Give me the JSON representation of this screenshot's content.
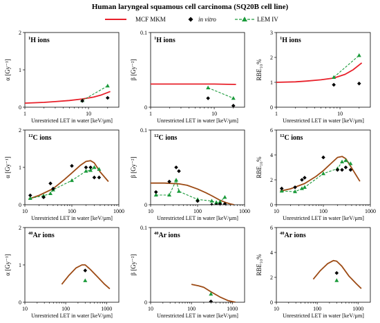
{
  "chart_data": {
    "type": "line",
    "title": "Human laryngeal squamous cell carcinoma (SQ20B cell line)",
    "legend": {
      "placement": "top",
      "entries": [
        {
          "label": "MCF MKM",
          "style": "solid line",
          "color": "#e8202a"
        },
        {
          "label": "in vitro",
          "style": "diamond markers",
          "color": "#000000"
        },
        {
          "label": "LEM IV",
          "style": "dashed line with triangles",
          "color": "#1a9a3a"
        }
      ]
    },
    "colors": {
      "mcf_h": "#e8202a",
      "mcf_ion": "#9c4a14",
      "invitro": "#000000",
      "lem": "#1a9a3a"
    },
    "panels": [
      {
        "ion_prefix": "1",
        "ion_label": "H ions",
        "ylabel": "α [Gy⁻¹]",
        "xlabel": "Unrestricted LET in water [keV/µm]",
        "xscale": "log",
        "xlim": [
          1,
          30
        ],
        "xticks": [
          1,
          10
        ],
        "ylim": [
          0,
          2
        ],
        "yticks": [
          0,
          1,
          2
        ],
        "mcf": {
          "x": [
            1,
            2,
            3,
            5,
            8,
            12,
            16,
            22
          ],
          "y": [
            0.11,
            0.13,
            0.15,
            0.18,
            0.22,
            0.27,
            0.33,
            0.42
          ]
        },
        "invitro": {
          "x": [
            8,
            20
          ],
          "y": [
            0.17,
            0.25
          ]
        },
        "lem": {
          "x": [
            8,
            20
          ],
          "y": [
            0.18,
            0.57
          ]
        }
      },
      {
        "ion_prefix": "1",
        "ion_label": "H ions",
        "ylabel": "β [Gy⁻²]",
        "xlabel": "Unrestricted LET in water [keV/µm]",
        "xscale": "log",
        "xlim": [
          1,
          30
        ],
        "xticks": [
          1,
          10
        ],
        "ylim": [
          0,
          0.1
        ],
        "yticks": [
          0,
          0.1
        ],
        "mcf": {
          "x": [
            1,
            3,
            10,
            22
          ],
          "y": [
            0.031,
            0.031,
            0.031,
            0.0305
          ]
        },
        "invitro": {
          "x": [
            8,
            20
          ],
          "y": [
            0.012,
            0.002
          ]
        },
        "lem": {
          "x": [
            8,
            20
          ],
          "y": [
            0.026,
            0.012
          ]
        }
      },
      {
        "ion_prefix": "1",
        "ion_label": "H ions",
        "ylabel": "RBE₁₀%",
        "xlabel": "Unrestricted LET in water [keV/µm]",
        "xscale": "log",
        "xlim": [
          1,
          30
        ],
        "xticks": [
          1,
          10
        ],
        "ylim": [
          0,
          3
        ],
        "yticks": [
          0,
          1,
          2,
          3
        ],
        "mcf": {
          "x": [
            1,
            2,
            3,
            5,
            8,
            12,
            16,
            22
          ],
          "y": [
            1.0,
            1.02,
            1.05,
            1.1,
            1.17,
            1.32,
            1.5,
            1.78
          ]
        },
        "invitro": {
          "x": [
            8,
            20
          ],
          "y": [
            0.9,
            0.95
          ]
        },
        "lem": {
          "x": [
            8,
            20
          ],
          "y": [
            1.2,
            2.08
          ]
        }
      },
      {
        "ion_prefix": "12",
        "ion_label": "C ions",
        "ylabel": "α [Gy⁻¹]",
        "xlabel": "Unrestricted LET in water [keV/µm]",
        "xscale": "log",
        "xlim": [
          10,
          1000
        ],
        "xticks": [
          10,
          100,
          1000
        ],
        "ylim": [
          0,
          2
        ],
        "yticks": [
          0,
          1,
          2
        ],
        "mcf": {
          "x": [
            12,
            20,
            40,
            70,
            100,
            150,
            200,
            250,
            300,
            400,
            600
          ],
          "y": [
            0.15,
            0.25,
            0.43,
            0.68,
            0.85,
            1.05,
            1.16,
            1.18,
            1.12,
            0.88,
            0.62
          ]
        },
        "invitro": {
          "x": [
            13,
            25,
            35,
            40,
            100,
            200,
            250,
            300,
            380
          ],
          "y": [
            0.25,
            0.2,
            0.57,
            0.43,
            1.04,
            1.0,
            1.0,
            0.73,
            0.73
          ]
        },
        "lem": {
          "x": [
            13,
            25,
            35,
            40,
            100,
            200,
            250,
            300,
            380
          ],
          "y": [
            0.17,
            0.24,
            0.3,
            0.4,
            0.65,
            0.9,
            0.92,
            1.0,
            0.95
          ]
        }
      },
      {
        "ion_prefix": "12",
        "ion_label": "C ions",
        "ylabel": "β [Gy⁻²]",
        "xlabel": "Unrestricted LET in water [keV/µm]",
        "xscale": "log",
        "xlim": [
          10,
          1000
        ],
        "xticks": [
          10,
          100,
          1000
        ],
        "ylim": [
          0,
          0.1
        ],
        "yticks": [
          0,
          0.1
        ],
        "mcf": {
          "x": [
            10,
            20,
            40,
            60,
            100,
            150,
            200,
            300,
            400,
            500,
            600
          ],
          "y": [
            0.029,
            0.029,
            0.028,
            0.026,
            0.021,
            0.016,
            0.012,
            0.006,
            0.003,
            0.001,
            0.0
          ]
        },
        "invitro": {
          "x": [
            13,
            25,
            35,
            40,
            100,
            200,
            250,
            300,
            380
          ],
          "y": [
            0.017,
            0.031,
            0.05,
            0.045,
            0.005,
            0.0,
            0.0,
            0.001,
            0.001
          ]
        },
        "lem": {
          "x": [
            13,
            25,
            35,
            40,
            100,
            200,
            250,
            300,
            380
          ],
          "y": [
            0.013,
            0.013,
            0.033,
            0.018,
            0.007,
            0.005,
            0.003,
            0.004,
            0.01
          ]
        }
      },
      {
        "ion_prefix": "12",
        "ion_label": "C ions",
        "ylabel": "RBE₁₀%",
        "xlabel": "Unrestricted LET in water [keV/µm]",
        "xscale": "log",
        "xlim": [
          10,
          1000
        ],
        "xticks": [
          10,
          100,
          1000
        ],
        "ylim": [
          0,
          6
        ],
        "yticks": [
          0,
          2,
          4,
          6
        ],
        "mcf": {
          "x": [
            12,
            20,
            40,
            70,
            100,
            150,
            200,
            250,
            300,
            400,
            600
          ],
          "y": [
            1.1,
            1.28,
            1.7,
            2.28,
            2.74,
            3.36,
            3.8,
            3.88,
            3.7,
            2.96,
            1.88
          ]
        },
        "invitro": {
          "x": [
            13,
            25,
            35,
            40,
            100,
            200,
            250,
            300,
            380
          ],
          "y": [
            1.3,
            1.4,
            2.0,
            2.17,
            3.8,
            2.8,
            2.8,
            3.0,
            2.8
          ]
        },
        "lem": {
          "x": [
            13,
            25,
            35,
            40,
            100,
            200,
            250,
            300,
            380
          ],
          "y": [
            1.1,
            1.05,
            1.3,
            1.4,
            2.5,
            2.9,
            3.45,
            3.55,
            3.3
          ]
        }
      },
      {
        "ion_prefix": "40",
        "ion_label": "Ar ions",
        "ylabel": "α [Gy⁻¹]",
        "xlabel": "Unrestricted LET in water [keV/µm]",
        "xscale": "log",
        "xlim": [
          10,
          2000
        ],
        "xticks": [
          10,
          100,
          1000
        ],
        "ylim": [
          0,
          2
        ],
        "yticks": [
          0,
          1,
          2
        ],
        "mcf": {
          "x": [
            80,
            120,
            180,
            250,
            300,
            400,
            600,
            900,
            1200
          ],
          "y": [
            0.48,
            0.72,
            0.92,
            1.0,
            1.0,
            0.88,
            0.68,
            0.48,
            0.36
          ]
        },
        "invitro": {
          "x": [
            300
          ],
          "y": [
            0.85
          ]
        },
        "lem": {
          "x": [
            300
          ],
          "y": [
            0.58
          ]
        }
      },
      {
        "ion_prefix": "40",
        "ion_label": "Ar ions",
        "ylabel": "β [Gy⁻²]",
        "xlabel": "Unrestricted LET in water [keV/µm]",
        "xscale": "log",
        "xlim": [
          10,
          2000
        ],
        "xticks": [
          10,
          100,
          1000
        ],
        "ylim": [
          0,
          0.1
        ],
        "yticks": [
          0,
          0.1
        ],
        "mcf": {
          "x": [
            100,
            150,
            200,
            300,
            500,
            800,
            1200
          ],
          "y": [
            0.024,
            0.022,
            0.02,
            0.014,
            0.007,
            0.002,
            0.0
          ]
        },
        "invitro": {
          "x": [
            300
          ],
          "y": [
            0.001
          ]
        },
        "lem": {
          "x": [
            300
          ],
          "y": [
            0.011
          ]
        }
      },
      {
        "ion_prefix": "40",
        "ion_label": "Ar ions",
        "ylabel": "RBE₁₀%",
        "xlabel": "Unrestricted LET in water [keV/µm]",
        "xscale": "log",
        "xlim": [
          10,
          2000
        ],
        "xticks": [
          10,
          100,
          1000
        ],
        "ylim": [
          0,
          6
        ],
        "yticks": [
          0,
          2,
          4,
          6
        ],
        "mcf": {
          "x": [
            80,
            120,
            180,
            250,
            300,
            400,
            600,
            900,
            1200
          ],
          "y": [
            1.85,
            2.55,
            3.1,
            3.35,
            3.3,
            2.9,
            2.1,
            1.5,
            1.1
          ]
        },
        "invitro": {
          "x": [
            300
          ],
          "y": [
            2.35
          ]
        },
        "lem": {
          "x": [
            300
          ],
          "y": [
            1.75
          ]
        }
      }
    ]
  }
}
